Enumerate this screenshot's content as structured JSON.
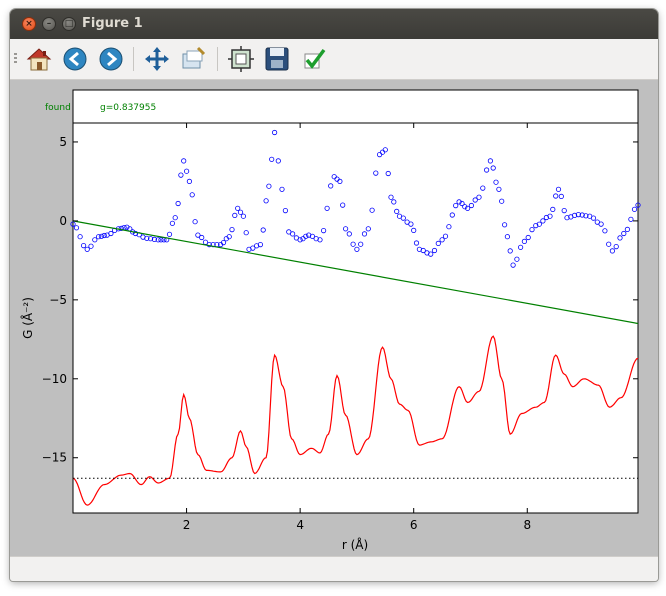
{
  "window": {
    "title": "Figure 1"
  },
  "toolbar": {
    "buttons": [
      {
        "name": "home-button",
        "icon": "home-icon"
      },
      {
        "name": "back-button",
        "icon": "back-arrow-icon"
      },
      {
        "name": "forward-button",
        "icon": "forward-arrow-icon"
      },
      {
        "name": "pan-button",
        "icon": "move-arrows-icon"
      },
      {
        "name": "zoom-button",
        "icon": "zoom-rect-icon"
      },
      {
        "name": "subplots-button",
        "icon": "subplots-icon"
      },
      {
        "name": "save-button",
        "icon": "floppy-disk-icon"
      },
      {
        "name": "edit-button",
        "icon": "checkmark-icon"
      }
    ]
  },
  "legend": {
    "label": "found",
    "value_text": "g=0.837955"
  },
  "colors": {
    "observed": "#0000ff",
    "baseline": "#008000",
    "difference": "#ff0000",
    "zero_line": "#000000"
  },
  "chart_data": {
    "type": "scatter",
    "xlabel": "r (Å)",
    "ylabel": "G (Å⁻²)",
    "xlim": [
      0.0,
      9.95
    ],
    "ylim": [
      -18.5,
      6.2
    ],
    "x_ticks": [
      2,
      4,
      6,
      8
    ],
    "y_ticks": [
      5,
      0,
      -5,
      -10,
      -15
    ],
    "grid": false,
    "series": [
      {
        "kind": "markers",
        "color": "#0000ff",
        "points": [
          [
            0.0,
            -0.2
          ],
          [
            0.25,
            -1.8
          ],
          [
            0.45,
            -1.0
          ],
          [
            0.6,
            -0.9
          ],
          [
            0.8,
            -0.5
          ],
          [
            0.95,
            -0.4
          ],
          [
            1.1,
            -0.8
          ],
          [
            1.3,
            -1.1
          ],
          [
            1.5,
            -1.2
          ],
          [
            1.65,
            -1.2
          ],
          [
            1.8,
            0.2
          ],
          [
            1.95,
            3.8
          ],
          [
            2.05,
            2.5
          ],
          [
            2.2,
            -0.9
          ],
          [
            2.4,
            -1.5
          ],
          [
            2.6,
            -1.5
          ],
          [
            2.75,
            -1.0
          ],
          [
            2.9,
            0.8
          ],
          [
            3.0,
            0.3
          ],
          [
            3.1,
            -1.8
          ],
          [
            3.3,
            -1.5
          ],
          [
            3.45,
            2.2
          ],
          [
            3.55,
            5.6
          ],
          [
            3.68,
            2.0
          ],
          [
            3.8,
            -0.7
          ],
          [
            4.0,
            -1.2
          ],
          [
            4.15,
            -0.9
          ],
          [
            4.35,
            -1.2
          ],
          [
            4.6,
            2.8
          ],
          [
            4.7,
            2.5
          ],
          [
            4.8,
            -0.5
          ],
          [
            5.0,
            -1.8
          ],
          [
            5.2,
            -0.5
          ],
          [
            5.4,
            4.2
          ],
          [
            5.5,
            4.5
          ],
          [
            5.6,
            1.5
          ],
          [
            5.75,
            0.3
          ],
          [
            5.95,
            -0.2
          ],
          [
            6.1,
            -1.8
          ],
          [
            6.3,
            -2.1
          ],
          [
            6.5,
            -1.2
          ],
          [
            6.8,
            1.2
          ],
          [
            6.95,
            0.8
          ],
          [
            7.15,
            1.5
          ],
          [
            7.35,
            3.8
          ],
          [
            7.5,
            2.0
          ],
          [
            7.65,
            -1.0
          ],
          [
            7.75,
            -2.8
          ],
          [
            7.95,
            -1.3
          ],
          [
            8.15,
            -0.3
          ],
          [
            8.4,
            0.3
          ],
          [
            8.55,
            2.0
          ],
          [
            8.7,
            0.2
          ],
          [
            8.9,
            0.4
          ],
          [
            9.1,
            0.3
          ],
          [
            9.3,
            -0.2
          ],
          [
            9.5,
            -1.9
          ],
          [
            9.7,
            -0.8
          ],
          [
            9.95,
            1.0
          ]
        ]
      },
      {
        "kind": "line",
        "color": "#008000",
        "points": [
          [
            0.0,
            0.0
          ],
          [
            9.95,
            -6.5
          ]
        ]
      },
      {
        "kind": "line",
        "color": "#ff0000",
        "points": [
          [
            0.0,
            -16.3
          ],
          [
            0.25,
            -18.0
          ],
          [
            0.55,
            -16.7
          ],
          [
            0.85,
            -16.1
          ],
          [
            1.0,
            -16.0
          ],
          [
            1.2,
            -16.7
          ],
          [
            1.35,
            -16.2
          ],
          [
            1.5,
            -16.6
          ],
          [
            1.7,
            -16.3
          ],
          [
            1.85,
            -13.5
          ],
          [
            1.95,
            -11.0
          ],
          [
            2.05,
            -12.5
          ],
          [
            2.2,
            -14.8
          ],
          [
            2.35,
            -15.8
          ],
          [
            2.6,
            -15.9
          ],
          [
            2.8,
            -15.0
          ],
          [
            2.95,
            -13.3
          ],
          [
            3.05,
            -14.3
          ],
          [
            3.2,
            -16.0
          ],
          [
            3.4,
            -15.0
          ],
          [
            3.55,
            -8.5
          ],
          [
            3.7,
            -10.5
          ],
          [
            3.85,
            -13.8
          ],
          [
            4.0,
            -14.8
          ],
          [
            4.2,
            -14.4
          ],
          [
            4.35,
            -14.7
          ],
          [
            4.5,
            -13.5
          ],
          [
            4.65,
            -9.8
          ],
          [
            4.8,
            -12.3
          ],
          [
            5.0,
            -14.8
          ],
          [
            5.2,
            -13.8
          ],
          [
            5.45,
            -8.0
          ],
          [
            5.6,
            -10.0
          ],
          [
            5.75,
            -11.6
          ],
          [
            5.9,
            -12.0
          ],
          [
            6.1,
            -14.2
          ],
          [
            6.3,
            -14.0
          ],
          [
            6.5,
            -13.8
          ],
          [
            6.8,
            -10.5
          ],
          [
            6.95,
            -11.5
          ],
          [
            7.15,
            -10.8
          ],
          [
            7.4,
            -7.3
          ],
          [
            7.55,
            -10.0
          ],
          [
            7.7,
            -13.5
          ],
          [
            7.9,
            -12.2
          ],
          [
            8.15,
            -11.8
          ],
          [
            8.3,
            -11.5
          ],
          [
            8.5,
            -8.5
          ],
          [
            8.65,
            -9.7
          ],
          [
            8.8,
            -10.5
          ],
          [
            9.0,
            -10.0
          ],
          [
            9.25,
            -10.4
          ],
          [
            9.45,
            -11.8
          ],
          [
            9.65,
            -11.2
          ],
          [
            9.95,
            -8.7
          ]
        ]
      },
      {
        "kind": "dotted-line",
        "color": "#000000",
        "points": [
          [
            0.0,
            -16.3
          ],
          [
            9.95,
            -16.3
          ]
        ]
      }
    ]
  }
}
